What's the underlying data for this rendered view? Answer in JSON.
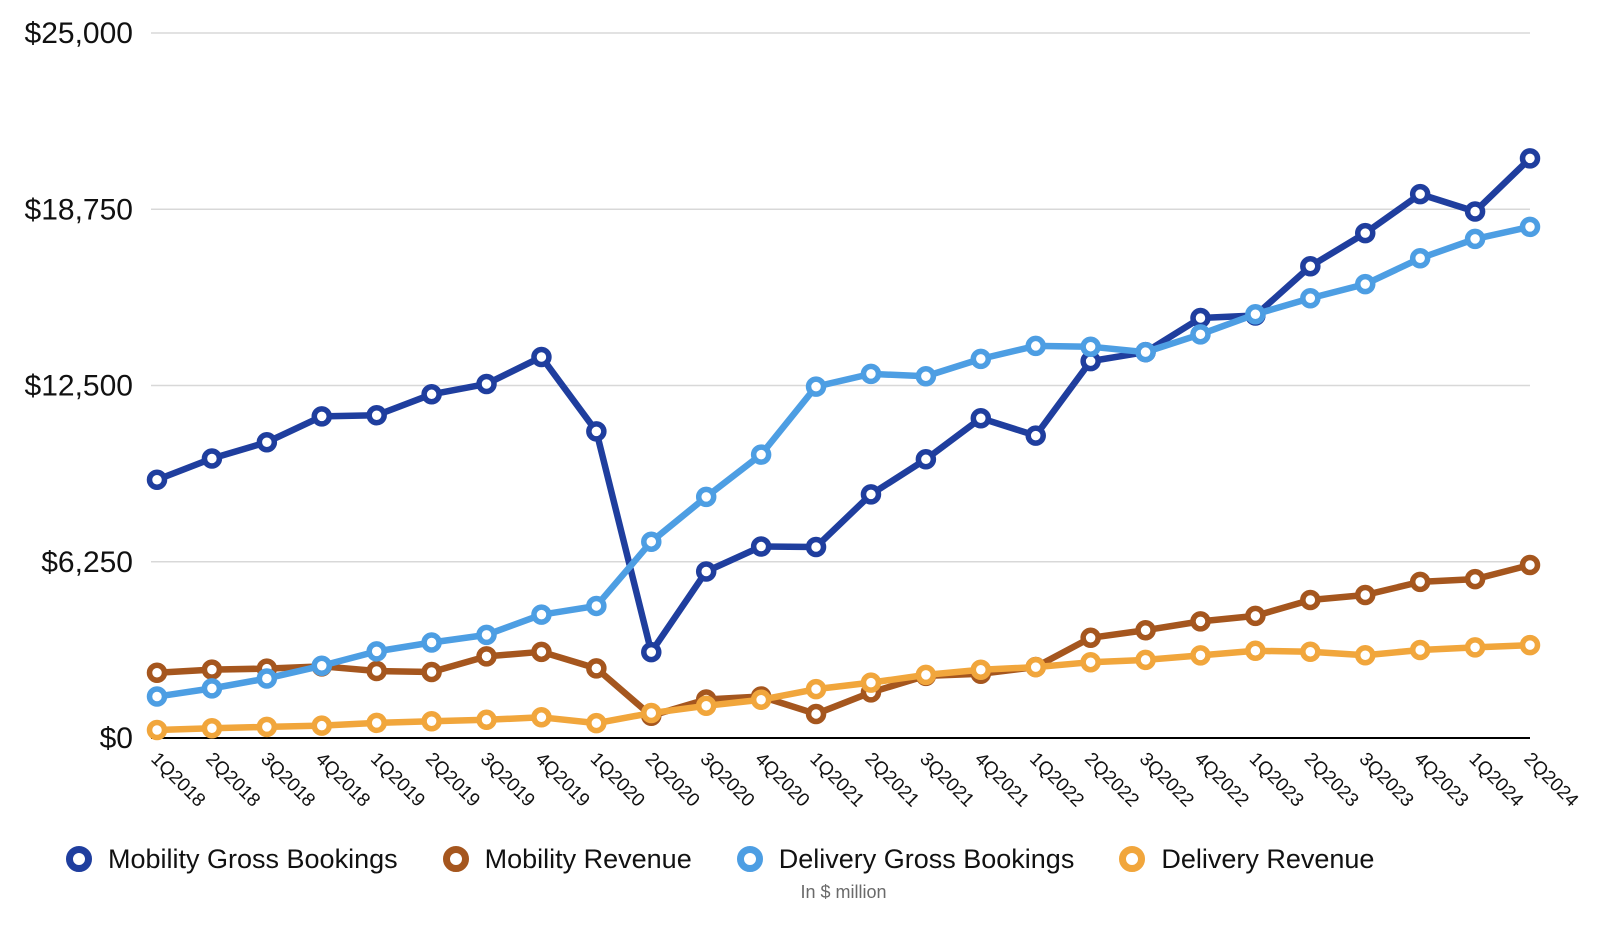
{
  "chart_data": {
    "type": "line",
    "title": "",
    "note": "In $ million",
    "unit": "$ million",
    "legend_position": "bottom",
    "grid": "horizontal",
    "categories": [
      "1Q2018",
      "2Q2018",
      "3Q2018",
      "4Q2018",
      "1Q2019",
      "2Q2019",
      "3Q2019",
      "4Q2019",
      "1Q2020",
      "2Q2020",
      "3Q2020",
      "4Q2020",
      "1Q2021",
      "2Q2021",
      "3Q2021",
      "4Q2021",
      "1Q2022",
      "2Q2022",
      "3Q2022",
      "4Q2022",
      "1Q2023",
      "2Q2023",
      "3Q2023",
      "4Q2023",
      "1Q2024",
      "2Q2024"
    ],
    "y_axis": {
      "min": 0,
      "max": 25000,
      "tick_values": [
        0,
        6250,
        12500,
        18750,
        25000
      ],
      "tick_labels": [
        "$0",
        "$6,250",
        "$12,500",
        "$18,750",
        "$25,000"
      ]
    },
    "series": [
      {
        "name": "Mobility Gross Bookings",
        "color": "#1F3E9E",
        "values": [
          9157,
          9911,
          10488,
          11404,
          11446,
          12188,
          12554,
          13512,
          10874,
          3046,
          5905,
          6789,
          6773,
          8640,
          9883,
          11340,
          10723,
          13364,
          13684,
          14894,
          14981,
          16728,
          17903,
          19286,
          18670,
          20554
        ]
      },
      {
        "name": "Mobility Revenue",
        "color": "#A5561E",
        "values": [
          2314,
          2426,
          2461,
          2542,
          2376,
          2341,
          2895,
          3056,
          2470,
          790,
          1365,
          1471,
          853,
          1618,
          2205,
          2278,
          2518,
          3553,
          3822,
          4136,
          4330,
          4894,
          5071,
          5537,
          5633,
          6134
        ]
      },
      {
        "name": "Delivery Gross Bookings",
        "color": "#4D9EE3",
        "values": [
          1470,
          1760,
          2111,
          2561,
          3071,
          3386,
          3658,
          4374,
          4683,
          6961,
          8550,
          10050,
          12461,
          12912,
          12828,
          13444,
          13903,
          13876,
          13684,
          14315,
          15026,
          15595,
          16094,
          17011,
          17699,
          18126
        ]
      },
      {
        "name": "Delivery Revenue",
        "color": "#F1A63C",
        "values": [
          283,
          346,
          394,
          437,
          536,
          595,
          645,
          734,
          527,
          885,
          1142,
          1356,
          1733,
          1963,
          2238,
          2420,
          2512,
          2688,
          2770,
          2931,
          3093,
          3057,
          2935,
          3121,
          3214,
          3293
        ]
      }
    ]
  },
  "layout_colors": {
    "background": "#FFFFFF",
    "axis_line": "#000000",
    "gridline": "#D8D8D8",
    "axis_label": "#111111",
    "note_text": "#6A6A6A"
  }
}
